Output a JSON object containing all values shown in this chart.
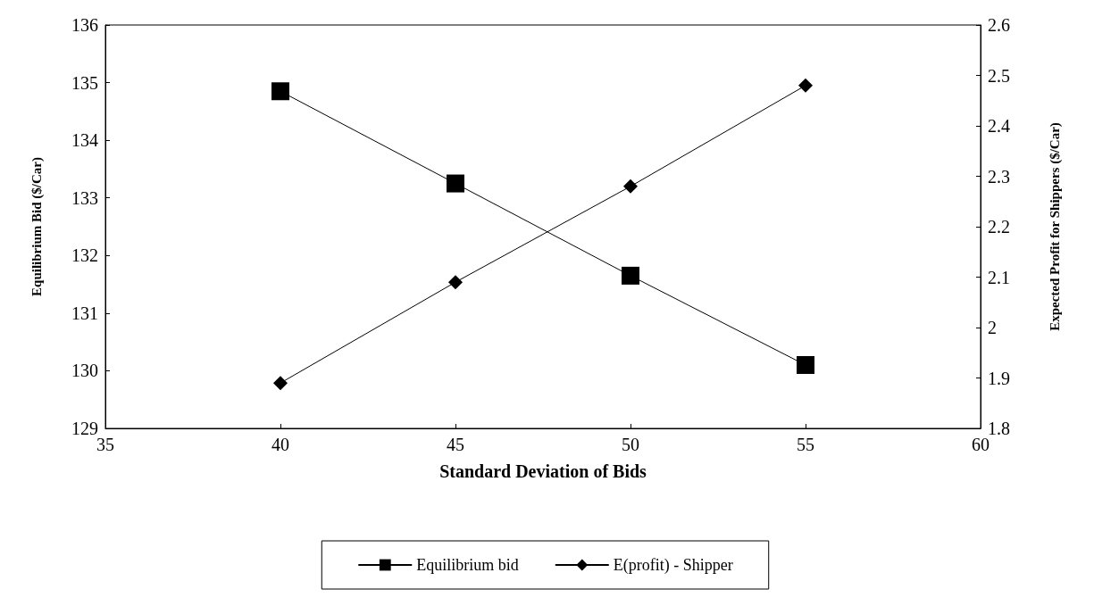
{
  "chart_data": {
    "type": "line",
    "xlabel": "Standard Deviation of Bids",
    "ylabel": "Equilibrium Bid ($/Car)",
    "y2label": "Expected Profit for Shippers ($/Car)",
    "x": [
      40,
      45,
      50,
      55
    ],
    "series": [
      {
        "name": "Equilibrium bid",
        "color": "#000000",
        "values": [
          134.85,
          133.25,
          131.65,
          130.1
        ],
        "marker": "square"
      },
      {
        "name": "E(profit) - Shipper",
        "color": "#000000",
        "values": [
          1.89,
          2.09,
          2.28,
          2.48
        ],
        "marker": "diamond",
        "axis": "y2"
      }
    ],
    "xlim": [
      35,
      60
    ],
    "xticks": [
      35,
      40,
      45,
      50,
      55,
      60
    ],
    "ylim": [
      129,
      136
    ],
    "yticks": [
      129,
      130,
      131,
      132,
      133,
      134,
      135,
      136
    ],
    "y2lim": [
      1.8,
      2.6
    ],
    "y2ticks": [
      1.8,
      1.9,
      2,
      2.1,
      2.2,
      2.3,
      2.4,
      2.5,
      2.6
    ],
    "grid": false,
    "legend": "bottom",
    "line_style": "solid"
  }
}
